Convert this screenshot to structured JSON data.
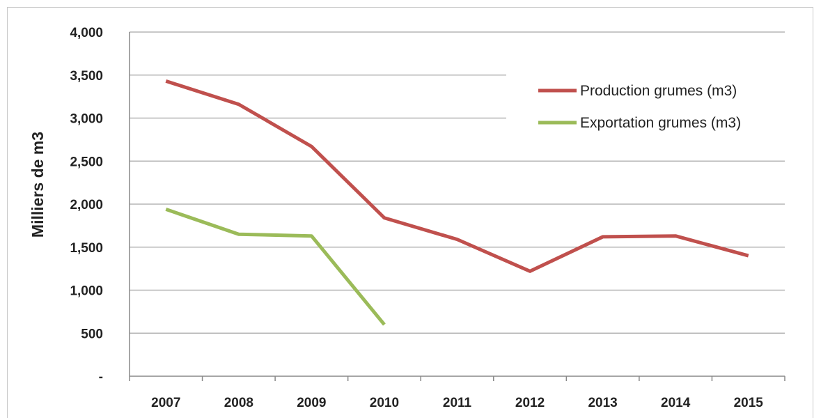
{
  "chart_data": {
    "type": "line",
    "title": "",
    "xlabel": "",
    "ylabel": "Milliers de m3",
    "categories": [
      "2007",
      "2008",
      "2009",
      "2010",
      "2011",
      "2012",
      "2013",
      "2014",
      "2015"
    ],
    "ylim": [
      0,
      4000
    ],
    "yticks": [
      0,
      500,
      1000,
      1500,
      2000,
      2500,
      3000,
      3500,
      4000
    ],
    "ytick_labels": [
      "-",
      "500",
      "1,000",
      "1,500",
      "2,000",
      "2,500",
      "3,000",
      "3,500",
      "4,000"
    ],
    "grid": true,
    "legend_position": "top-right",
    "series": [
      {
        "name": "Production grumes (m3)",
        "color": "#c0504d",
        "values": [
          3430,
          3160,
          2670,
          1840,
          1590,
          1220,
          1620,
          1630,
          1400
        ]
      },
      {
        "name": "Exportation grumes (m3)",
        "color": "#9bbb59",
        "values": [
          1940,
          1650,
          1630,
          600,
          null,
          null,
          null,
          null,
          null
        ]
      }
    ]
  }
}
